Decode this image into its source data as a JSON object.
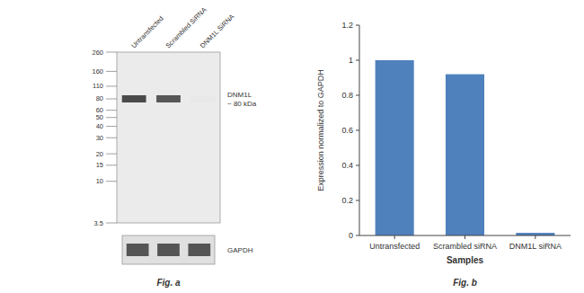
{
  "chart_data": [
    {
      "type": "blot",
      "title": "Fig. a",
      "categories": [
        "Untransfected",
        "Scrambled SiRNA",
        "DNM1L SiRNA"
      ],
      "ylim": [
        3.5,
        260
      ],
      "yticks": [
        260,
        160,
        110,
        80,
        60,
        50,
        40,
        30,
        20,
        15,
        10,
        3.5
      ],
      "log": "y",
      "annotations": [
        "DNM1L\n~ 80 kDa",
        "GAPDH"
      ]
    },
    {
      "type": "bar",
      "title": "Fig. b",
      "categories": [
        "Untransfected",
        "Scrambled siRNA",
        "DNM1L siRNA"
      ],
      "values": [
        1.0,
        0.92,
        0.015
      ],
      "color": "#4F81BD",
      "ylim": [
        0,
        1.2
      ],
      "yticks": [
        0,
        0.2,
        0.4,
        0.6,
        0.8,
        1.0,
        1.2
      ],
      "xlabel": "Samples",
      "ylabel": "Expression normalized to GAPDH",
      "grid": false
    }
  ]
}
